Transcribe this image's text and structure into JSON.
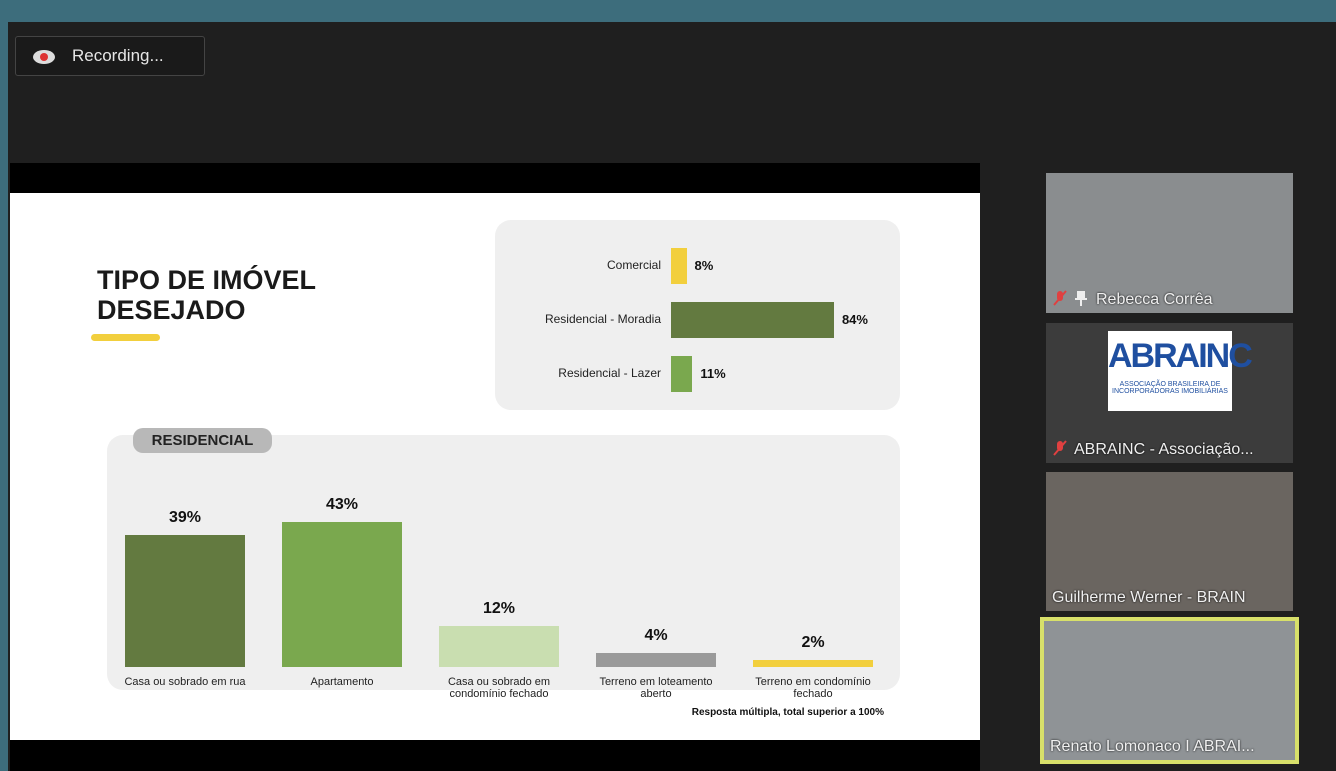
{
  "recording": "Recording...",
  "slide": {
    "title_lines": [
      "TIPO DE IMÓVEL",
      "DESEJADO"
    ],
    "note": "Resposta múltipla, total superior a 100%"
  },
  "chart_data": [
    {
      "type": "bar",
      "orientation": "horizontal",
      "categories": [
        "Comercial",
        "Residencial - Moradia",
        "Residencial - Lazer"
      ],
      "values": [
        8,
        84,
        11
      ],
      "value_labels": [
        "8%",
        "84%",
        "11%"
      ],
      "colors": [
        "#f2cf3d",
        "#637a40",
        "#7aa84e"
      ]
    },
    {
      "type": "bar",
      "orientation": "vertical",
      "title": "RESIDENCIAL",
      "categories": [
        "Casa ou sobrado em rua",
        "Apartamento",
        "Casa ou sobrado em condomínio fechado",
        "Terreno em loteamento aberto",
        "Terreno em condomínio fechado"
      ],
      "values": [
        39,
        43,
        12,
        4,
        2
      ],
      "value_labels": [
        "39%",
        "43%",
        "12%",
        "4%",
        "2%"
      ],
      "colors": [
        "#637a40",
        "#7aa84e",
        "#c9deb0",
        "#9a9a9a",
        "#f2cf3d"
      ]
    }
  ],
  "participants": [
    {
      "name": "Rebecca Corrêa",
      "muted": true,
      "pinned": true
    },
    {
      "name": "ABRAINC - Associação...",
      "muted": true,
      "pinned": false,
      "logo": "ABRAINC",
      "logo_caption": "ASSOCIAÇÃO BRASILEIRA DE INCORPORADORAS IMOBILIÁRIAS"
    },
    {
      "name": "Guilherme Werner - BRAIN",
      "muted": false,
      "pinned": false
    },
    {
      "name": "Renato Lomonaco I ABRAI...",
      "muted": false,
      "pinned": false,
      "active": true
    }
  ]
}
